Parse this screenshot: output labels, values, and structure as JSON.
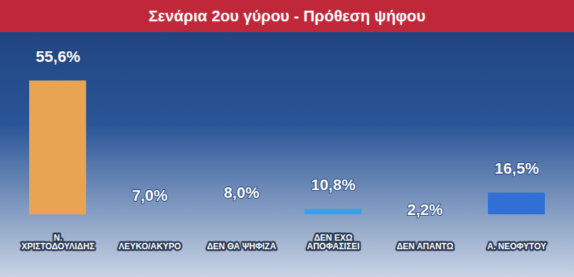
{
  "chart_data": {
    "type": "bar",
    "title": "Σενάρια 2ου γύρου - Πρόθεση ψήφου",
    "categories": [
      "Ν. ΧΡΙΣΤΟΔΟΥΛΙΔΗΣ",
      "ΛΕΥΚΟ/ΑΚΥΡΟ",
      "ΔΕΝ ΘΑ ΨΗΦΙΖΑ",
      "ΔΕΝ ΕΧΩ ΑΠΟΦΑΣΙΣΕΙ",
      "ΔΕΝ ΑΠΑΝΤΩ",
      "Α. ΝΕΟΦΥΤΟΥ"
    ],
    "values": [
      55.6,
      7.0,
      8.0,
      10.8,
      2.2,
      16.5
    ],
    "value_labels": [
      "55,6%",
      "7,0%",
      "8,0%",
      "10,8%",
      "2,2%",
      "16,5%"
    ],
    "colors": [
      "#e8a452",
      "#3b9ee8",
      "#3b9ee8",
      "#3b9ee8",
      "#3b9ee8",
      "#2f6fd6"
    ],
    "data_labels": true,
    "tick_labels": "x"
  }
}
